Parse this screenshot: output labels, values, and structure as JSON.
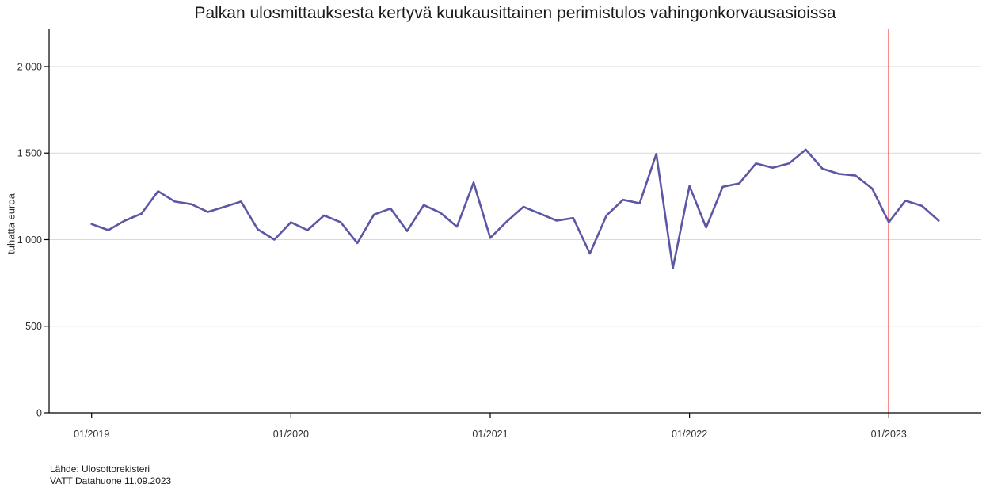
{
  "title": "Palkan ulosmittauksesta kertyvä kuukausittainen perimistulos vahingonkorvausasioissa",
  "footer": {
    "line1": "Lähde: Ulosottorekisteri",
    "line2": "VATT Datahuone 11.09.2023"
  },
  "chart_data": {
    "type": "line",
    "title": "Palkan ulosmittauksesta kertyvä kuukausittainen perimistulos vahingonkorvausasioissa",
    "xlabel": "",
    "ylabel": "tuhatta euroa",
    "ylim": [
      0,
      2215
    ],
    "grid": "horizontal-major-only",
    "legend": "none",
    "y_ticks": [
      0,
      500,
      1000,
      1500,
      2000
    ],
    "y_tick_labels": [
      "0",
      "500",
      "1 000",
      "1 500",
      "2 000"
    ],
    "x_tick_labels": [
      "01/2019",
      "01/2020",
      "01/2021",
      "01/2022",
      "01/2023"
    ],
    "x_tick_month_indices": [
      0,
      12,
      24,
      36,
      48
    ],
    "months": [
      "01/2019",
      "02/2019",
      "03/2019",
      "04/2019",
      "05/2019",
      "06/2019",
      "07/2019",
      "08/2019",
      "09/2019",
      "10/2019",
      "11/2019",
      "12/2019",
      "01/2020",
      "02/2020",
      "03/2020",
      "04/2020",
      "05/2020",
      "06/2020",
      "07/2020",
      "08/2020",
      "09/2020",
      "10/2020",
      "11/2020",
      "12/2020",
      "01/2021",
      "02/2021",
      "03/2021",
      "04/2021",
      "05/2021",
      "06/2021",
      "07/2021",
      "08/2021",
      "09/2021",
      "10/2021",
      "11/2021",
      "12/2021",
      "01/2022",
      "02/2022",
      "03/2022",
      "04/2022",
      "05/2022",
      "06/2022",
      "07/2022",
      "08/2022",
      "09/2022",
      "10/2022",
      "11/2022",
      "12/2022",
      "01/2023",
      "02/2023",
      "03/2023",
      "04/2023"
    ],
    "values": [
      1090,
      1055,
      1110,
      1150,
      1280,
      1220,
      1205,
      1160,
      1190,
      1220,
      1060,
      1000,
      1100,
      1055,
      1140,
      1100,
      980,
      1145,
      1180,
      1050,
      1200,
      1155,
      1075,
      1330,
      1010,
      1105,
      1190,
      1150,
      1110,
      1125,
      920,
      1140,
      1230,
      1210,
      1495,
      835,
      1310,
      1070,
      1305,
      1325,
      1440,
      1415,
      1440,
      1520,
      1410,
      1380,
      1370,
      1295,
      1100,
      1225,
      1195,
      1110
    ],
    "reference_line": {
      "label": "01/2023",
      "month_index": 48,
      "color": "#ee0000"
    },
    "colors": {
      "line": "#5b57a5",
      "grid": "#d9d9d9",
      "axis": "#000000",
      "tick_text": "#303030",
      "title_text": "#1a1a1a"
    }
  }
}
